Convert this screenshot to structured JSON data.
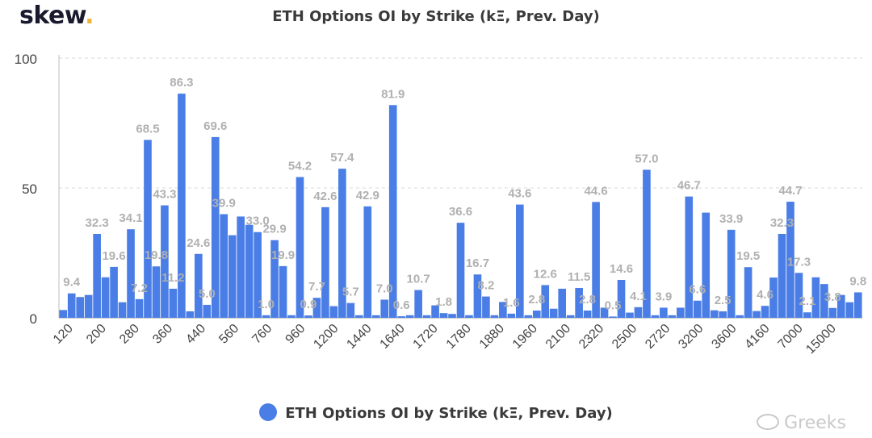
{
  "header": {
    "logo_text": "skew",
    "logo_dot": "."
  },
  "legend": {
    "label": "ETH Options OI by Strike (kΞ, Prev. Day)"
  },
  "watermark": {
    "text": "Greeks",
    "icon": "wechat-icon"
  },
  "colors": {
    "bar": "#4a7ee6",
    "label": "#b0b0b0",
    "axis": "#444444",
    "grid": "#d8d8d8"
  },
  "chart_data": {
    "type": "bar",
    "title": "ETH Options OI by Strike (kΞ, Prev. Day)",
    "xlabel": "",
    "ylabel": "",
    "ylim": [
      0,
      100
    ],
    "yticks": [
      0,
      50,
      100
    ],
    "grid": true,
    "legend_position": "bottom",
    "x_tick_labels": [
      "120",
      "200",
      "280",
      "360",
      "440",
      "560",
      "760",
      "960",
      "1200",
      "1440",
      "1640",
      "1720",
      "1780",
      "1880",
      "1960",
      "2100",
      "2320",
      "2500",
      "2720",
      "3200",
      "3600",
      "4160",
      "7000",
      "15000"
    ],
    "series": [
      {
        "name": "ETH Options OI by Strike (kΞ, Prev. Day)",
        "values": [
          3.0,
          9.4,
          8.0,
          8.8,
          32.3,
          15.6,
          19.6,
          6.0,
          34.1,
          7.2,
          68.5,
          19.8,
          43.3,
          11.2,
          86.3,
          2.5,
          24.6,
          5.0,
          69.6,
          39.9,
          31.8,
          39.0,
          35.8,
          33.0,
          1.0,
          29.9,
          19.9,
          1.0,
          54.2,
          0.9,
          7.7,
          42.6,
          4.5,
          57.4,
          5.7,
          1.0,
          42.9,
          1.0,
          7.0,
          81.9,
          0.6,
          1.0,
          10.7,
          1.0,
          4.8,
          1.8,
          1.5,
          36.6,
          1.0,
          16.7,
          8.2,
          1.0,
          6.1,
          1.6,
          43.6,
          1.0,
          2.8,
          12.6,
          3.5,
          11.2,
          1.0,
          11.5,
          2.8,
          44.6,
          3.9,
          0.5,
          14.6,
          2.0,
          4.1,
          57.0,
          1.0,
          3.9,
          1.0,
          3.9,
          46.7,
          6.6,
          40.5,
          2.9,
          2.5,
          33.9,
          1.0,
          19.5,
          2.6,
          4.6,
          15.5,
          32.3,
          44.7,
          17.3,
          2.1,
          15.6,
          13.0,
          3.8,
          8.8,
          6.0,
          9.8
        ]
      }
    ],
    "data_labels": [
      {
        "index": 1,
        "text": "9.4"
      },
      {
        "index": 4,
        "text": "32.3"
      },
      {
        "index": 6,
        "text": "19.6"
      },
      {
        "index": 8,
        "text": "34.1"
      },
      {
        "index": 9,
        "text": "7.2"
      },
      {
        "index": 10,
        "text": "68.5"
      },
      {
        "index": 11,
        "text": "19.8"
      },
      {
        "index": 12,
        "text": "43.3"
      },
      {
        "index": 13,
        "text": "11.2"
      },
      {
        "index": 14,
        "text": "86.3"
      },
      {
        "index": 16,
        "text": "24.6"
      },
      {
        "index": 17,
        "text": "5.0"
      },
      {
        "index": 18,
        "text": "69.6"
      },
      {
        "index": 19,
        "text": "39.9"
      },
      {
        "index": 23,
        "text": "33.0"
      },
      {
        "index": 24,
        "text": "1.0"
      },
      {
        "index": 25,
        "text": "29.9"
      },
      {
        "index": 26,
        "text": "19.9"
      },
      {
        "index": 28,
        "text": "54.2"
      },
      {
        "index": 29,
        "text": "0.9"
      },
      {
        "index": 30,
        "text": "7.7"
      },
      {
        "index": 31,
        "text": "42.6"
      },
      {
        "index": 33,
        "text": "57.4"
      },
      {
        "index": 34,
        "text": "5.7"
      },
      {
        "index": 36,
        "text": "42.9"
      },
      {
        "index": 38,
        "text": "7.0"
      },
      {
        "index": 39,
        "text": "81.9"
      },
      {
        "index": 40,
        "text": "0.6"
      },
      {
        "index": 42,
        "text": "10.7"
      },
      {
        "index": 45,
        "text": "1.8"
      },
      {
        "index": 47,
        "text": "36.6"
      },
      {
        "index": 49,
        "text": "16.7"
      },
      {
        "index": 50,
        "text": "8.2"
      },
      {
        "index": 53,
        "text": "1.6"
      },
      {
        "index": 54,
        "text": "43.6"
      },
      {
        "index": 56,
        "text": "2.8"
      },
      {
        "index": 57,
        "text": "12.6"
      },
      {
        "index": 61,
        "text": "11.5"
      },
      {
        "index": 62,
        "text": "2.8"
      },
      {
        "index": 63,
        "text": "44.6"
      },
      {
        "index": 65,
        "text": "0.5"
      },
      {
        "index": 66,
        "text": "14.6"
      },
      {
        "index": 68,
        "text": "4.1"
      },
      {
        "index": 69,
        "text": "57.0"
      },
      {
        "index": 71,
        "text": "3.9"
      },
      {
        "index": 74,
        "text": "46.7"
      },
      {
        "index": 75,
        "text": "6.6"
      },
      {
        "index": 79,
        "text": "33.9"
      },
      {
        "index": 78,
        "text": "2.5"
      },
      {
        "index": 81,
        "text": "19.5"
      },
      {
        "index": 83,
        "text": "4.6"
      },
      {
        "index": 85,
        "text": "32.3"
      },
      {
        "index": 86,
        "text": "44.7"
      },
      {
        "index": 87,
        "text": "17.3"
      },
      {
        "index": 88,
        "text": "2.1"
      },
      {
        "index": 91,
        "text": "3.8"
      },
      {
        "index": 94,
        "text": "9.8"
      }
    ]
  }
}
